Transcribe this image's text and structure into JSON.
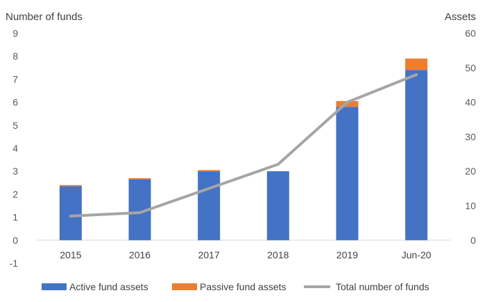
{
  "chart_data": {
    "type": "bar",
    "title": "",
    "left_axis_title": "Number of funds",
    "right_axis_title": "Assets",
    "categories": [
      "2015",
      "2016",
      "2017",
      "2018",
      "2019",
      "Jun-20"
    ],
    "left_axis": {
      "min": -1,
      "max": 9,
      "step": 1,
      "ticks": [
        "-1",
        "0",
        "1",
        "2",
        "3",
        "4",
        "5",
        "6",
        "7",
        "8",
        "9"
      ]
    },
    "right_axis": {
      "min": 0,
      "max": 60,
      "step": 10,
      "ticks": [
        "0",
        "10",
        "20",
        "30",
        "40",
        "50",
        "60"
      ]
    },
    "series": [
      {
        "name": "Active fund assets",
        "kind": "stacked-bar",
        "axis": "left",
        "color": "#4472C4",
        "values": [
          2.35,
          2.65,
          3.0,
          3.0,
          5.8,
          7.4
        ]
      },
      {
        "name": "Passive fund assets",
        "kind": "stacked-bar",
        "axis": "left",
        "color": "#ED7D31",
        "values": [
          0.05,
          0.05,
          0.05,
          0.0,
          0.25,
          0.5
        ]
      },
      {
        "name": "Total number of funds",
        "kind": "line",
        "axis": "right",
        "color": "#A5A5A5",
        "values": [
          7,
          8,
          15,
          22,
          40,
          48
        ]
      }
    ],
    "grid": false,
    "legend_position": "bottom"
  }
}
